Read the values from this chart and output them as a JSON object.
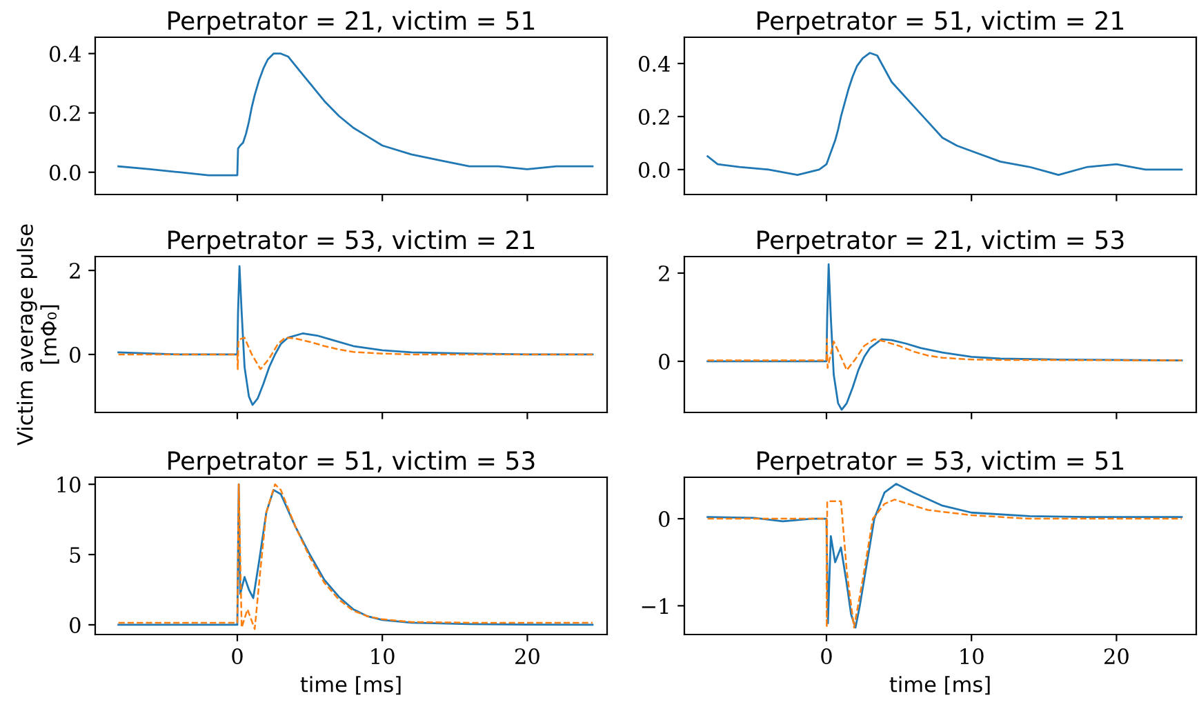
{
  "chart_data": [
    {
      "type": "line",
      "title": "Perpetrator = 21, victim = 51",
      "xlim": [
        -9.8,
        25.5
      ],
      "xticks": [
        0,
        10,
        20
      ],
      "ylim": [
        -0.075,
        0.455
      ],
      "yticks": [
        {
          "value": 0,
          "label": "0.0"
        },
        {
          "value": 0.2,
          "label": "0.2"
        },
        {
          "value": 0.4,
          "label": "0.4"
        }
      ],
      "tick_labels": "y",
      "series": [
        {
          "color": "#1f77b4",
          "line_style": "solid",
          "x": [
            -8.2,
            -6,
            -4,
            -2,
            -0.5,
            0,
            0.05,
            0.2,
            0.4,
            0.6,
            0.8,
            1.0,
            1.2,
            1.5,
            1.8,
            2.1,
            2.5,
            3,
            3.5,
            4,
            4.5,
            5,
            6,
            7,
            8,
            9,
            10,
            12,
            14,
            16,
            18,
            20,
            22,
            24.5
          ],
          "values": [
            0.02,
            0.01,
            0.0,
            -0.01,
            -0.01,
            -0.01,
            0.08,
            0.09,
            0.1,
            0.13,
            0.17,
            0.22,
            0.26,
            0.31,
            0.35,
            0.38,
            0.4,
            0.4,
            0.39,
            0.36,
            0.33,
            0.3,
            0.24,
            0.19,
            0.15,
            0.12,
            0.09,
            0.06,
            0.04,
            0.02,
            0.02,
            0.01,
            0.02,
            0.02
          ]
        }
      ]
    },
    {
      "type": "line",
      "title": "Perpetrator = 51, victim = 21",
      "xlim": [
        -9.8,
        25.5
      ],
      "xticks": [
        0,
        10,
        20
      ],
      "ylim": [
        -0.094,
        0.499
      ],
      "yticks": [
        {
          "value": 0,
          "label": "0.0"
        },
        {
          "value": 0.2,
          "label": "0.2"
        },
        {
          "value": 0.4,
          "label": "0.4"
        }
      ],
      "tick_labels": "y",
      "series": [
        {
          "color": "#1f77b4",
          "line_style": "solid",
          "x": [
            -8.2,
            -7.5,
            -6,
            -4,
            -2,
            -0.5,
            0,
            0.2,
            0.4,
            0.6,
            0.8,
            1.0,
            1.2,
            1.5,
            1.8,
            2.1,
            2.5,
            3,
            3.5,
            4,
            4.5,
            5,
            6,
            7,
            8,
            9,
            10,
            12,
            14,
            16,
            18,
            20,
            22,
            24.5
          ],
          "values": [
            0.05,
            0.02,
            0.01,
            0.0,
            -0.02,
            0.0,
            0.02,
            0.05,
            0.08,
            0.11,
            0.15,
            0.2,
            0.24,
            0.3,
            0.35,
            0.39,
            0.42,
            0.44,
            0.43,
            0.38,
            0.33,
            0.3,
            0.24,
            0.18,
            0.12,
            0.09,
            0.07,
            0.03,
            0.01,
            -0.02,
            0.01,
            0.02,
            0.0,
            0.0
          ]
        }
      ]
    },
    {
      "type": "line",
      "title": "Perpetrator = 53, victim = 21",
      "ylabel": "Victim average pulse\n[mΦ₀]",
      "xlim": [
        -9.8,
        25.5
      ],
      "xticks": [
        0,
        10,
        20
      ],
      "ylim": [
        -1.38,
        2.33
      ],
      "yticks": [
        0,
        2
      ],
      "tick_labels": "y",
      "series": [
        {
          "color": "#1f77b4",
          "line_style": "solid",
          "x": [
            -8.2,
            -4,
            -0.5,
            0,
            0.05,
            0.15,
            0.3,
            0.5,
            0.8,
            1.05,
            1.4,
            1.8,
            2.2,
            2.6,
            3,
            3.5,
            4.5,
            5.5,
            6.5,
            8,
            10,
            12,
            16,
            20,
            24.5
          ],
          "values": [
            0.05,
            0.0,
            0.0,
            0.0,
            1.0,
            2.1,
            1.0,
            -0.3,
            -1.0,
            -1.2,
            -1.05,
            -0.7,
            -0.3,
            0.0,
            0.25,
            0.4,
            0.5,
            0.45,
            0.35,
            0.2,
            0.1,
            0.05,
            0.02,
            0.0,
            0.0
          ]
        },
        {
          "color": "#ff7f0e",
          "line_style": "dashed",
          "x": [
            -8.2,
            0,
            0.03,
            0.08,
            0.5,
            1.0,
            1.6,
            2.2,
            2.8,
            3.3,
            4,
            5,
            6,
            7,
            8,
            10,
            12,
            24.5
          ],
          "values": [
            0.0,
            0.0,
            -0.35,
            0.35,
            0.4,
            0.0,
            -0.35,
            -0.1,
            0.25,
            0.4,
            0.38,
            0.3,
            0.2,
            0.12,
            0.06,
            0.02,
            0.0,
            0.0
          ]
        }
      ]
    },
    {
      "type": "line",
      "title": "Perpetrator = 21, victim = 53",
      "xlim": [
        -9.8,
        25.5
      ],
      "xticks": [
        0,
        10,
        20
      ],
      "ylim": [
        -1.16,
        2.375
      ],
      "yticks": [
        0,
        2
      ],
      "tick_labels": "y",
      "series": [
        {
          "color": "#1f77b4",
          "line_style": "solid",
          "x": [
            -8.2,
            -4,
            -0.5,
            0,
            0.05,
            0.15,
            0.3,
            0.5,
            0.8,
            1.05,
            1.4,
            1.8,
            2.2,
            2.6,
            3,
            3.8,
            4.5,
            5.5,
            6.5,
            8,
            10,
            12,
            16,
            20,
            24.5
          ],
          "values": [
            0.0,
            0.0,
            0.0,
            0.0,
            1.0,
            2.2,
            1.0,
            -0.3,
            -0.95,
            -1.1,
            -0.95,
            -0.6,
            -0.2,
            0.1,
            0.3,
            0.5,
            0.48,
            0.4,
            0.3,
            0.2,
            0.1,
            0.06,
            0.04,
            0.03,
            0.02
          ]
        },
        {
          "color": "#ff7f0e",
          "line_style": "dashed",
          "x": [
            -8.2,
            0,
            0.03,
            0.08,
            0.5,
            1.0,
            1.4,
            2.0,
            2.6,
            3.3,
            4,
            5,
            6,
            7,
            8,
            10,
            12,
            24.5
          ],
          "values": [
            0.02,
            0.02,
            0.5,
            -0.15,
            0.45,
            0.1,
            -0.2,
            0.05,
            0.35,
            0.5,
            0.45,
            0.35,
            0.22,
            0.13,
            0.08,
            0.04,
            0.03,
            0.02
          ]
        }
      ]
    },
    {
      "type": "line",
      "title": "Perpetrator = 51, victim = 53",
      "xlabel": "time [ms]",
      "xlim": [
        -9.8,
        25.5
      ],
      "xticks": [
        0,
        10,
        20
      ],
      "ylim": [
        -0.69,
        10.5
      ],
      "yticks": [
        0,
        5,
        10
      ],
      "series": [
        {
          "color": "#1f77b4",
          "line_style": "solid",
          "x": [
            -8.2,
            -4,
            0,
            0.1,
            0.2,
            0.5,
            0.8,
            1.1,
            1.5,
            2.0,
            2.5,
            3,
            4,
            5,
            6,
            7,
            8,
            9,
            10,
            12,
            16,
            20,
            24.5
          ],
          "values": [
            0.0,
            0.0,
            0.0,
            10.0,
            2.2,
            3.4,
            2.5,
            1.9,
            4.5,
            8.0,
            9.6,
            9.3,
            7.0,
            5.0,
            3.2,
            2.0,
            1.1,
            0.6,
            0.35,
            0.15,
            0.05,
            0.02,
            0.0
          ]
        },
        {
          "color": "#ff7f0e",
          "line_style": "dashed",
          "x": [
            -8.2,
            0,
            0.1,
            0.3,
            0.7,
            1.2,
            1.6,
            2.0,
            2.6,
            3,
            4,
            5,
            6,
            7,
            8,
            9,
            10,
            12,
            16,
            24.5
          ],
          "values": [
            0.15,
            0.15,
            10.0,
            -0.2,
            1.1,
            -0.3,
            4.0,
            8.0,
            10.0,
            9.6,
            7.0,
            4.8,
            3.0,
            1.8,
            1.0,
            0.6,
            0.4,
            0.2,
            0.15,
            0.15
          ]
        }
      ]
    },
    {
      "type": "line",
      "title": "Perpetrator = 53, victim = 51",
      "xlabel": "time [ms]",
      "xlim": [
        -9.8,
        25.5
      ],
      "xticks": [
        0,
        10,
        20
      ],
      "ylim": [
        -1.33,
        0.476
      ],
      "yticks": [
        {
          "value": -1,
          "label": "−1"
        },
        0
      ],
      "series": [
        {
          "color": "#1f77b4",
          "line_style": "solid",
          "x": [
            -8.2,
            -5,
            -3,
            -1,
            0,
            0.05,
            0.1,
            0.3,
            0.6,
            1.0,
            1.4,
            1.7,
            2.0,
            2.3,
            2.7,
            3.3,
            4,
            4.8,
            6,
            8,
            10,
            14,
            18,
            24.5
          ],
          "values": [
            0.02,
            0.01,
            -0.03,
            0.0,
            0.0,
            -0.6,
            -1.2,
            -0.2,
            -0.5,
            -0.33,
            -0.75,
            -1.1,
            -1.25,
            -1.0,
            -0.6,
            0.0,
            0.3,
            0.4,
            0.3,
            0.15,
            0.07,
            0.03,
            0.02,
            0.02
          ]
        },
        {
          "color": "#ff7f0e",
          "line_style": "dashed",
          "x": [
            -8.2,
            0,
            0.02,
            0.05,
            0.5,
            1.0,
            1.4,
            1.9,
            2.5,
            3.2,
            4,
            4.7,
            6,
            7,
            10,
            14,
            24.5
          ],
          "values": [
            0.0,
            0.0,
            -1.25,
            0.2,
            0.2,
            0.2,
            -0.6,
            -1.25,
            -0.7,
            0.0,
            0.17,
            0.22,
            0.15,
            0.1,
            0.04,
            0.0,
            0.0
          ]
        }
      ]
    }
  ]
}
